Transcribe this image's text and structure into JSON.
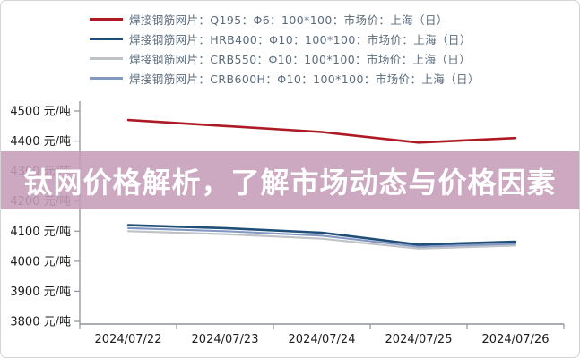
{
  "banner": {
    "title": "钛网价格解析，了解市场动态与价格因素",
    "bg_color": "#c59db8",
    "text_color": "#ffffff"
  },
  "chart_data": {
    "type": "line",
    "title": "",
    "xlabel": "",
    "ylabel": "",
    "unit": "元/吨",
    "x": [
      "2024/07/22",
      "2024/07/23",
      "2024/07/24",
      "2024/07/25",
      "2024/07/26"
    ],
    "ylim": [
      3800,
      4500
    ],
    "ytick_step": 100,
    "grid": false,
    "legend_position": "top-left",
    "axis_color": "#8d9399",
    "tick_label_color": "#1c1c1c",
    "series": [
      {
        "key": "q195",
        "name": "焊接钢筋网片：Q195：Φ6：100*100：市场价：上海（日）",
        "color": "#ad1a23",
        "stroke_width": 2.6,
        "values": [
          4470,
          4450,
          4430,
          4395,
          4410
        ]
      },
      {
        "key": "hrb400",
        "name": "焊接钢筋网片：HRB400：Φ10：100*100：市场价：上海（日）",
        "color": "#1f4e79",
        "stroke_width": 2.6,
        "values": [
          4120,
          4110,
          4095,
          4055,
          4065
        ]
      },
      {
        "key": "crb550",
        "name": "焊接钢筋网片：CRB550：Φ10：100*100：市场价：上海（日）",
        "color": "#bfc3c7",
        "stroke_width": 2.2,
        "values": [
          4100,
          4090,
          4075,
          4042,
          4052
        ]
      },
      {
        "key": "crb600h",
        "name": "焊接钢筋网片：CRB600H：Φ10：100*100：市场价：上海（日）",
        "color": "#8399c4",
        "stroke_width": 2.2,
        "values": [
          4110,
          4100,
          4085,
          4048,
          4058
        ]
      }
    ]
  }
}
